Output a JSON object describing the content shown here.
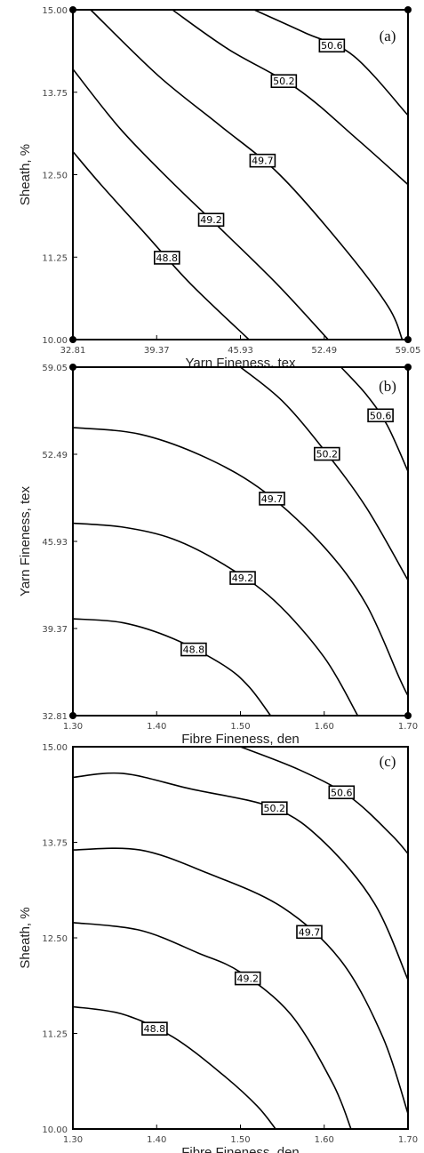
{
  "chart_data": [
    {
      "type": "contour",
      "panel_label": "(a)",
      "xlabel": "Yarn Fineness, tex",
      "ylabel": "Sheath, %",
      "xticks": [
        "32.81",
        "39.37",
        "45.93",
        "52.49",
        "59.05"
      ],
      "yticks": [
        "10.00",
        "11.25",
        "12.50",
        "13.75",
        "15.00"
      ],
      "xlim": [
        32.81,
        59.05
      ],
      "ylim": [
        10.0,
        15.0
      ],
      "contours": [
        {
          "level": "48.8",
          "points": [
            [
              32.81,
              12.85
            ],
            [
              35.0,
              12.35
            ],
            [
              38.5,
              11.6
            ],
            [
              42.0,
              10.85
            ],
            [
              46.6,
              10.0
            ]
          ]
        },
        {
          "level": "49.2",
          "points": [
            [
              32.81,
              14.1
            ],
            [
              36.5,
              13.2
            ],
            [
              40.5,
              12.4
            ],
            [
              44.8,
              11.6
            ],
            [
              49.0,
              10.8
            ],
            [
              52.8,
              10.0
            ]
          ]
        },
        {
          "level": "49.7",
          "points": [
            [
              34.2,
              15.0
            ],
            [
              39.5,
              14.0
            ],
            [
              44.3,
              13.25
            ],
            [
              49.0,
              12.5
            ],
            [
              54.0,
              11.4
            ],
            [
              57.5,
              10.5
            ],
            [
              58.6,
              10.0
            ]
          ]
        },
        {
          "level": "50.2",
          "points": [
            [
              40.6,
              15.0
            ],
            [
              45.0,
              14.4
            ],
            [
              50.4,
              13.8
            ],
            [
              55.0,
              13.05
            ],
            [
              59.05,
              12.35
            ]
          ]
        },
        {
          "level": "50.6",
          "points": [
            [
              47.0,
              15.0
            ],
            [
              51.0,
              14.65
            ],
            [
              54.8,
              14.3
            ],
            [
              59.05,
              13.4
            ]
          ]
        }
      ]
    },
    {
      "type": "contour",
      "panel_label": "(b)",
      "xlabel": "Fibre Fineness, den",
      "ylabel": "Yarn Fineness, tex",
      "xticks": [
        "1.30",
        "1.40",
        "1.50",
        "1.60",
        "1.70"
      ],
      "yticks": [
        "32.81",
        "39.37",
        "45.93",
        "52.49",
        "59.05"
      ],
      "xlim": [
        1.3,
        1.7
      ],
      "ylim": [
        32.81,
        59.05
      ],
      "contours": [
        {
          "level": "48.8",
          "points": [
            [
              1.3,
              40.1
            ],
            [
              1.36,
              39.8
            ],
            [
              1.42,
              38.6
            ],
            [
              1.48,
              36.6
            ],
            [
              1.51,
              35.0
            ],
            [
              1.536,
              32.81
            ]
          ]
        },
        {
          "level": "49.2",
          "points": [
            [
              1.3,
              47.3
            ],
            [
              1.36,
              47.0
            ],
            [
              1.42,
              46.1
            ],
            [
              1.48,
              44.2
            ],
            [
              1.54,
              41.5
            ],
            [
              1.6,
              37.2
            ],
            [
              1.64,
              32.81
            ]
          ]
        },
        {
          "level": "49.7",
          "points": [
            [
              1.3,
              54.5
            ],
            [
              1.38,
              54.0
            ],
            [
              1.46,
              52.2
            ],
            [
              1.53,
              49.6
            ],
            [
              1.6,
              45.5
            ],
            [
              1.65,
              41.2
            ],
            [
              1.69,
              35.6
            ],
            [
              1.7,
              34.3
            ]
          ]
        },
        {
          "level": "50.2",
          "points": [
            [
              1.5,
              59.05
            ],
            [
              1.55,
              56.5
            ],
            [
              1.6,
              52.8
            ],
            [
              1.65,
              48.5
            ],
            [
              1.7,
              43.0
            ]
          ]
        },
        {
          "level": "50.6",
          "points": [
            [
              1.62,
              59.05
            ],
            [
              1.65,
              57.0
            ],
            [
              1.675,
              54.7
            ],
            [
              1.7,
              51.2
            ]
          ]
        }
      ]
    },
    {
      "type": "contour",
      "panel_label": "(c)",
      "xlabel": "Fibre Fineness, den",
      "ylabel": "Sheath, %",
      "xticks": [
        "1.30",
        "1.40",
        "1.50",
        "1.60",
        "1.70"
      ],
      "yticks": [
        "10.00",
        "11.25",
        "12.50",
        "13.75",
        "15.00"
      ],
      "xlim": [
        1.3,
        1.7
      ],
      "ylim": [
        10.0,
        15.0
      ],
      "contours": [
        {
          "level": "48.8",
          "points": [
            [
              1.3,
              11.6
            ],
            [
              1.36,
              11.5
            ],
            [
              1.42,
              11.2
            ],
            [
              1.48,
              10.7
            ],
            [
              1.52,
              10.3
            ],
            [
              1.542,
              10.0
            ]
          ]
        },
        {
          "level": "49.2",
          "points": [
            [
              1.3,
              12.7
            ],
            [
              1.38,
              12.6
            ],
            [
              1.45,
              12.3
            ],
            [
              1.5,
              12.05
            ],
            [
              1.56,
              11.5
            ],
            [
              1.61,
              10.6
            ],
            [
              1.632,
              10.0
            ]
          ]
        },
        {
          "level": "49.7",
          "points": [
            [
              1.3,
              13.65
            ],
            [
              1.38,
              13.65
            ],
            [
              1.46,
              13.35
            ],
            [
              1.55,
              12.9
            ],
            [
              1.62,
              12.2
            ],
            [
              1.67,
              11.2
            ],
            [
              1.7,
              10.2
            ]
          ]
        },
        {
          "level": "50.2",
          "points": [
            [
              1.3,
              14.6
            ],
            [
              1.36,
              14.65
            ],
            [
              1.44,
              14.45
            ],
            [
              1.54,
              14.2
            ],
            [
              1.6,
              13.75
            ],
            [
              1.66,
              12.95
            ],
            [
              1.7,
              11.95
            ]
          ]
        },
        {
          "level": "50.6",
          "points": [
            [
              1.5,
              15.0
            ],
            [
              1.57,
              14.7
            ],
            [
              1.63,
              14.35
            ],
            [
              1.68,
              13.85
            ],
            [
              1.7,
              13.6
            ]
          ]
        }
      ]
    }
  ]
}
